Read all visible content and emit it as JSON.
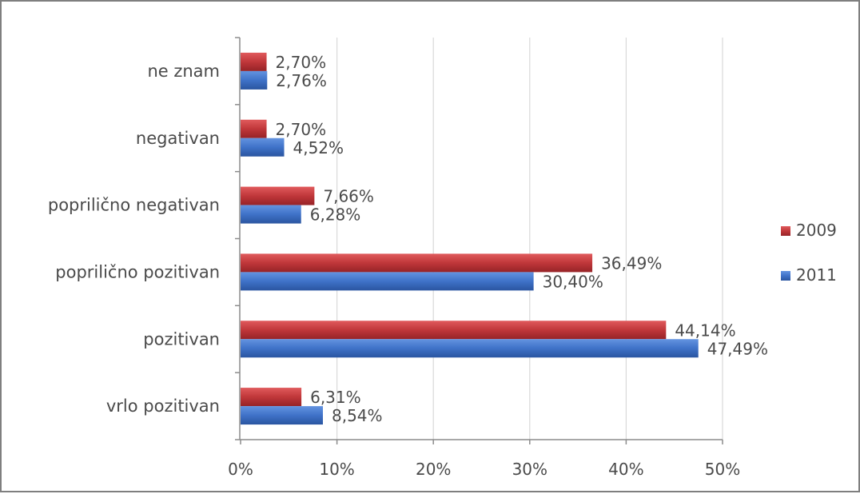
{
  "chart_data": {
    "type": "bar",
    "orientation": "horizontal",
    "categories": [
      "ne znam",
      "negativan",
      "poprilično negativan",
      "poprilično pozitivan",
      "pozitivan",
      "vrlo pozitivan"
    ],
    "series": [
      {
        "name": "2009",
        "color": "#c0373a",
        "values": [
          2.7,
          2.7,
          7.66,
          36.49,
          44.14,
          6.31
        ],
        "labels": [
          "2,70%",
          "2,70%",
          "7,66%",
          "36,49%",
          "44,14%",
          "6,31%"
        ]
      },
      {
        "name": "2011",
        "color": "#3f72c8",
        "values": [
          2.76,
          4.52,
          6.28,
          30.4,
          47.49,
          8.54
        ],
        "labels": [
          "2,76%",
          "4,52%",
          "6,28%",
          "30,40%",
          "47,49%",
          "8,54%"
        ]
      }
    ],
    "x_ticks": [
      "0%",
      "10%",
      "20%",
      "30%",
      "40%",
      "50%"
    ],
    "xlim": [
      0,
      50
    ],
    "grid": "vertical",
    "legend_position": "right"
  }
}
